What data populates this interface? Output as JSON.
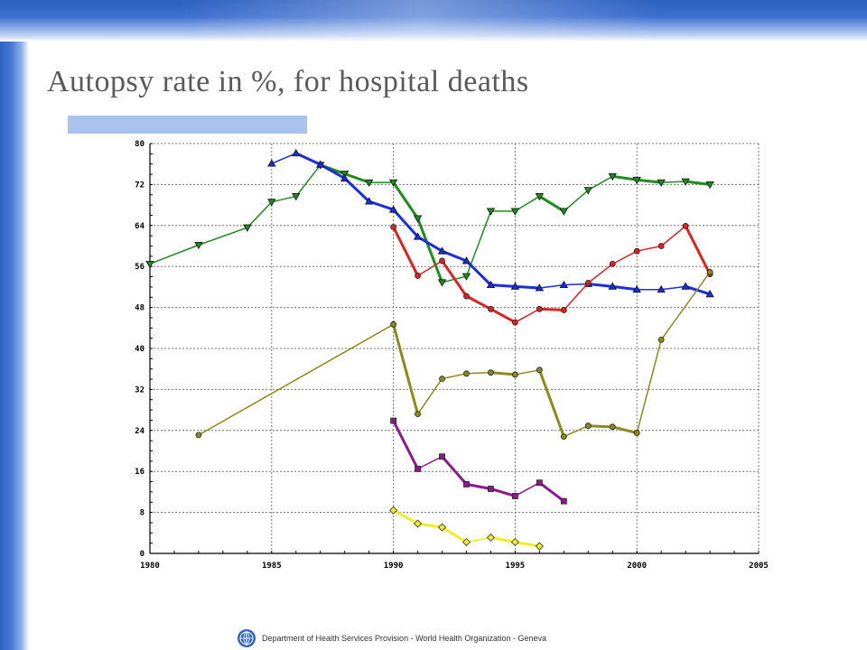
{
  "slide": {
    "title": "Autopsy rate in %, for hospital deaths",
    "footer": "Department of Health Services Provision - World Health Organization - Geneva"
  },
  "colors": {
    "background": "#ffffff",
    "band": "#3366cc",
    "title": "#5a5a5a",
    "title_bar": "#a9c2ee"
  },
  "chart_data": {
    "type": "line",
    "title": "",
    "xlabel": "",
    "ylabel": "",
    "xlim": [
      1980,
      2005
    ],
    "ylim": [
      0,
      80
    ],
    "xticks": [
      1980,
      1985,
      1990,
      1995,
      2000,
      2005
    ],
    "yticks": [
      0,
      8,
      16,
      24,
      32,
      40,
      48,
      56,
      64,
      72,
      80
    ],
    "grid": true,
    "series": [
      {
        "color": "#1f8c1f",
        "marker": "triangle-down",
        "points": [
          [
            1980,
            56.5
          ],
          [
            1982,
            60.2
          ],
          [
            1984,
            63.6
          ],
          [
            1985,
            68.6
          ],
          [
            1986,
            69.7
          ],
          [
            1987,
            75.8
          ],
          [
            1988,
            74.1
          ],
          [
            1989,
            72.4
          ],
          [
            1990,
            72.4
          ],
          [
            1991,
            65.4
          ],
          [
            1992,
            52.9
          ],
          [
            1993,
            54.1
          ],
          [
            1994,
            66.8
          ],
          [
            1995,
            66.8
          ],
          [
            1996,
            69.7
          ],
          [
            1997,
            66.8
          ],
          [
            1998,
            70.9
          ],
          [
            1999,
            73.6
          ],
          [
            2000,
            72.9
          ],
          [
            2001,
            72.4
          ],
          [
            2002,
            72.6
          ],
          [
            2003,
            72.0
          ]
        ]
      },
      {
        "color": "#1a2ee0",
        "marker": "triangle-up",
        "points": [
          [
            1985,
            76.1
          ],
          [
            1986,
            78.1
          ],
          [
            1987,
            75.9
          ],
          [
            1988,
            73.2
          ],
          [
            1989,
            68.7
          ],
          [
            1990,
            67.1
          ],
          [
            1991,
            61.8
          ],
          [
            1992,
            59.0
          ],
          [
            1993,
            57.1
          ],
          [
            1994,
            52.4
          ],
          [
            1995,
            52.1
          ],
          [
            1996,
            51.8
          ],
          [
            1997,
            52.4
          ],
          [
            1998,
            52.6
          ],
          [
            1999,
            52.1
          ],
          [
            2000,
            51.5
          ],
          [
            2001,
            51.5
          ],
          [
            2002,
            52.1
          ],
          [
            2003,
            50.6
          ]
        ]
      },
      {
        "color": "#dd2222",
        "marker": "circle",
        "points": [
          [
            1990,
            63.7
          ],
          [
            1991,
            54.2
          ],
          [
            1992,
            57.1
          ],
          [
            1993,
            50.2
          ],
          [
            1994,
            47.7
          ],
          [
            1995,
            45.1
          ],
          [
            1996,
            47.7
          ],
          [
            1997,
            47.5
          ],
          [
            1998,
            52.8
          ],
          [
            1999,
            56.5
          ],
          [
            2000,
            59.0
          ],
          [
            2001,
            60.0
          ],
          [
            2002,
            63.9
          ],
          [
            2003,
            54.5
          ]
        ]
      },
      {
        "color": "#8c8a1c",
        "marker": "circle",
        "points": [
          [
            1982,
            23.1
          ],
          [
            1990,
            44.7
          ],
          [
            1991,
            27.2
          ],
          [
            1992,
            34.1
          ],
          [
            1993,
            35.1
          ],
          [
            1994,
            35.3
          ],
          [
            1995,
            34.9
          ],
          [
            1996,
            35.8
          ],
          [
            1997,
            22.8
          ],
          [
            1998,
            24.9
          ],
          [
            1999,
            24.7
          ],
          [
            2000,
            23.5
          ],
          [
            2001,
            41.7
          ],
          [
            2003,
            54.9
          ]
        ]
      },
      {
        "color": "#8c1a8c",
        "marker": "square",
        "points": [
          [
            1990,
            25.9
          ],
          [
            1991,
            16.5
          ],
          [
            1992,
            18.9
          ],
          [
            1993,
            13.5
          ],
          [
            1994,
            12.6
          ],
          [
            1995,
            11.2
          ],
          [
            1996,
            13.8
          ],
          [
            1997,
            10.2
          ]
        ]
      },
      {
        "color": "#eeee22",
        "marker": "diamond",
        "points": [
          [
            1990,
            8.4
          ],
          [
            1991,
            5.8
          ],
          [
            1992,
            5.1
          ],
          [
            1993,
            2.2
          ],
          [
            1994,
            3.1
          ],
          [
            1995,
            2.2
          ],
          [
            1996,
            1.4
          ]
        ]
      }
    ]
  }
}
